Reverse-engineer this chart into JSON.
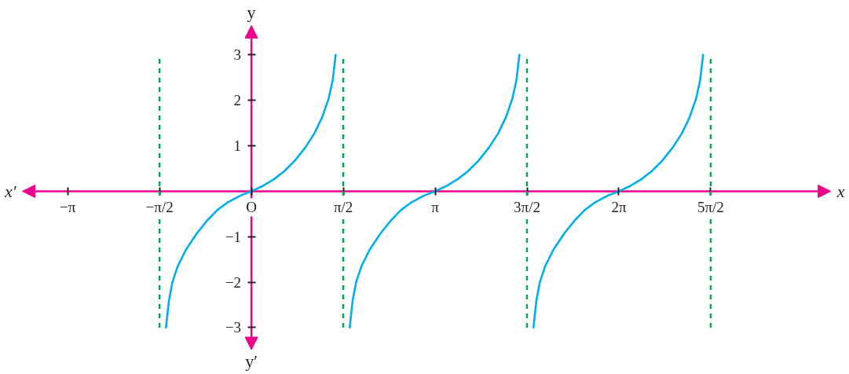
{
  "chart_data": {
    "type": "line",
    "xlabel": "x",
    "ylabel": "y",
    "annotations": [
      "x′",
      "y′"
    ],
    "xlim": [
      -4.29,
      10.22
    ],
    "ylim": [
      -4.03,
      4.2
    ],
    "xticks": [
      {
        "value": -3.14,
        "label": "−π"
      },
      {
        "value": -1.57,
        "label": "−π/2"
      },
      {
        "value": 0,
        "label": "O"
      },
      {
        "value": 1.57,
        "label": "π/2"
      },
      {
        "value": 3.14,
        "label": "π"
      },
      {
        "value": 4.71,
        "label": "3π/2"
      },
      {
        "value": 6.28,
        "label": "2π"
      },
      {
        "value": 7.85,
        "label": "5π/2"
      }
    ],
    "yticks": [
      {
        "value": -3,
        "label": "−3"
      },
      {
        "value": -2,
        "label": "−2"
      },
      {
        "value": -1,
        "label": "−1"
      },
      1,
      2,
      3
    ],
    "series": [
      {
        "color": "#00aeef",
        "x": [
          -1.46,
          -1.41,
          -1.35,
          -1.26,
          -1.12,
          -0.94,
          -0.76,
          -0.58,
          -0.4,
          -0.18,
          0,
          0.2,
          0.38,
          0.56,
          0.74,
          0.92,
          1.08,
          1.21,
          1.32,
          1.39,
          1.44
        ],
        "values": [
          -3.0,
          -2.41,
          -2.0,
          -1.65,
          -1.29,
          -0.94,
          -0.65,
          -0.41,
          -0.24,
          -0.09,
          0,
          0.12,
          0.26,
          0.44,
          0.67,
          0.96,
          1.28,
          1.63,
          2.04,
          2.45,
          3.0
        ]
      },
      {
        "color": "#00aeef",
        "x": [
          1.68,
          1.73,
          1.79,
          1.88,
          2.02,
          2.2,
          2.38,
          2.56,
          2.74,
          2.96,
          3.14,
          3.34,
          3.52,
          3.7,
          3.88,
          4.06,
          4.22,
          4.35,
          4.46,
          4.53,
          4.58
        ],
        "values": [
          -3.0,
          -2.41,
          -2.0,
          -1.65,
          -1.29,
          -0.94,
          -0.65,
          -0.41,
          -0.24,
          -0.09,
          0,
          0.12,
          0.26,
          0.44,
          0.67,
          0.96,
          1.28,
          1.63,
          2.04,
          2.45,
          3.0
        ]
      },
      {
        "color": "#00aeef",
        "x": [
          4.82,
          4.87,
          4.93,
          5.02,
          5.16,
          5.34,
          5.52,
          5.7,
          5.88,
          6.1,
          6.28,
          6.48,
          6.66,
          6.84,
          7.02,
          7.2,
          7.36,
          7.49,
          7.6,
          7.67,
          7.72
        ],
        "values": [
          -3.0,
          -2.41,
          -2.0,
          -1.65,
          -1.29,
          -0.94,
          -0.65,
          -0.41,
          -0.24,
          -0.09,
          0,
          0.12,
          0.26,
          0.44,
          0.67,
          0.96,
          1.28,
          1.63,
          2.04,
          2.45,
          3.0
        ]
      }
    ],
    "ref_lines": [
      {
        "axis": "x",
        "value": -1.57,
        "color": "#00a651",
        "line_style": "dashed"
      },
      {
        "axis": "x",
        "value": 1.57,
        "color": "#00a651",
        "line_style": "dashed"
      },
      {
        "axis": "x",
        "value": 4.71,
        "color": "#00a651",
        "line_style": "dashed"
      },
      {
        "axis": "x",
        "value": 7.85,
        "color": "#00a651",
        "line_style": "dashed"
      }
    ],
    "grid": false,
    "marker": "none",
    "line_style": "solid"
  }
}
